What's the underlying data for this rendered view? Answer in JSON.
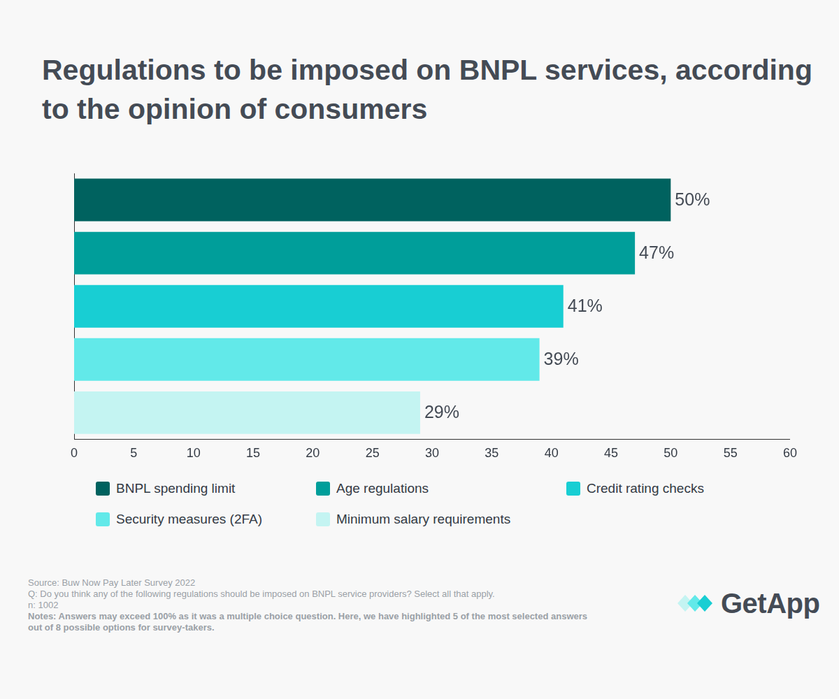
{
  "chart_data": {
    "type": "bar",
    "title": "Regulations to be imposed on BNPL services, according to the opinion of consumers",
    "orientation": "horizontal",
    "categories": [
      "BNPL spending limit",
      "Age regulations",
      "Credit rating checks",
      "Security measures (2FA)",
      "Minimum salary requirements"
    ],
    "values": [
      50,
      47,
      41,
      39,
      29
    ],
    "value_labels": [
      "50%",
      "47%",
      "41%",
      "39%",
      "29%"
    ],
    "data_labels": true,
    "colors": [
      "#00625f",
      "#009e9a",
      "#18ced3",
      "#62e9e9",
      "#c4f4f2"
    ],
    "xlim": [
      0,
      60
    ],
    "xticks": [
      0,
      5,
      10,
      15,
      20,
      25,
      30,
      35,
      40,
      45,
      50,
      55,
      60
    ],
    "tick_labels": "x",
    "grid": false,
    "legend": "bottom",
    "annotations": [
      "Source: Buw Now Pay Later Survey 2022",
      "Q: Do you think any of the following regulations should be imposed on BNPL service providers? Select all that apply.",
      "n: 1002",
      "Notes: Answers may exceed 100% as it was a multiple choice question. Here, we have highlighted 5 of the most selected answers out of 8 possible options for survey-takers.",
      "GetApp"
    ]
  }
}
